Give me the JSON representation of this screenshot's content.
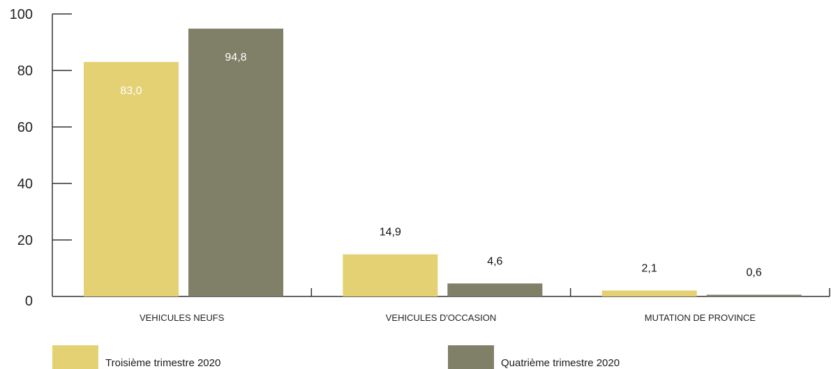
{
  "chart_data": {
    "type": "bar",
    "categories": [
      "VEHICULES NEUFS",
      "VEHICULES D'OCCASION",
      "MUTATION DE PROVINCE"
    ],
    "series": [
      {
        "name": "Troisième trimestre 2020",
        "values": [
          83.0,
          14.9,
          2.1
        ],
        "labels": [
          "83,0",
          "14,9",
          "2,1"
        ],
        "color": "#e3d173",
        "label_color_first": "#ffffff"
      },
      {
        "name": "Quatrième trimestre 2020",
        "values": [
          94.8,
          4.6,
          0.6
        ],
        "labels": [
          "94,8",
          "4,6",
          "0,6"
        ],
        "color": "#807f68",
        "label_color_first": "#ffffff"
      }
    ],
    "yticks": [
      "0",
      "20",
      "40",
      "60",
      "80",
      "100"
    ],
    "ylim": [
      0,
      100
    ],
    "xlabel": "",
    "ylabel": "",
    "legend_position": "bottom",
    "grid": false
  }
}
